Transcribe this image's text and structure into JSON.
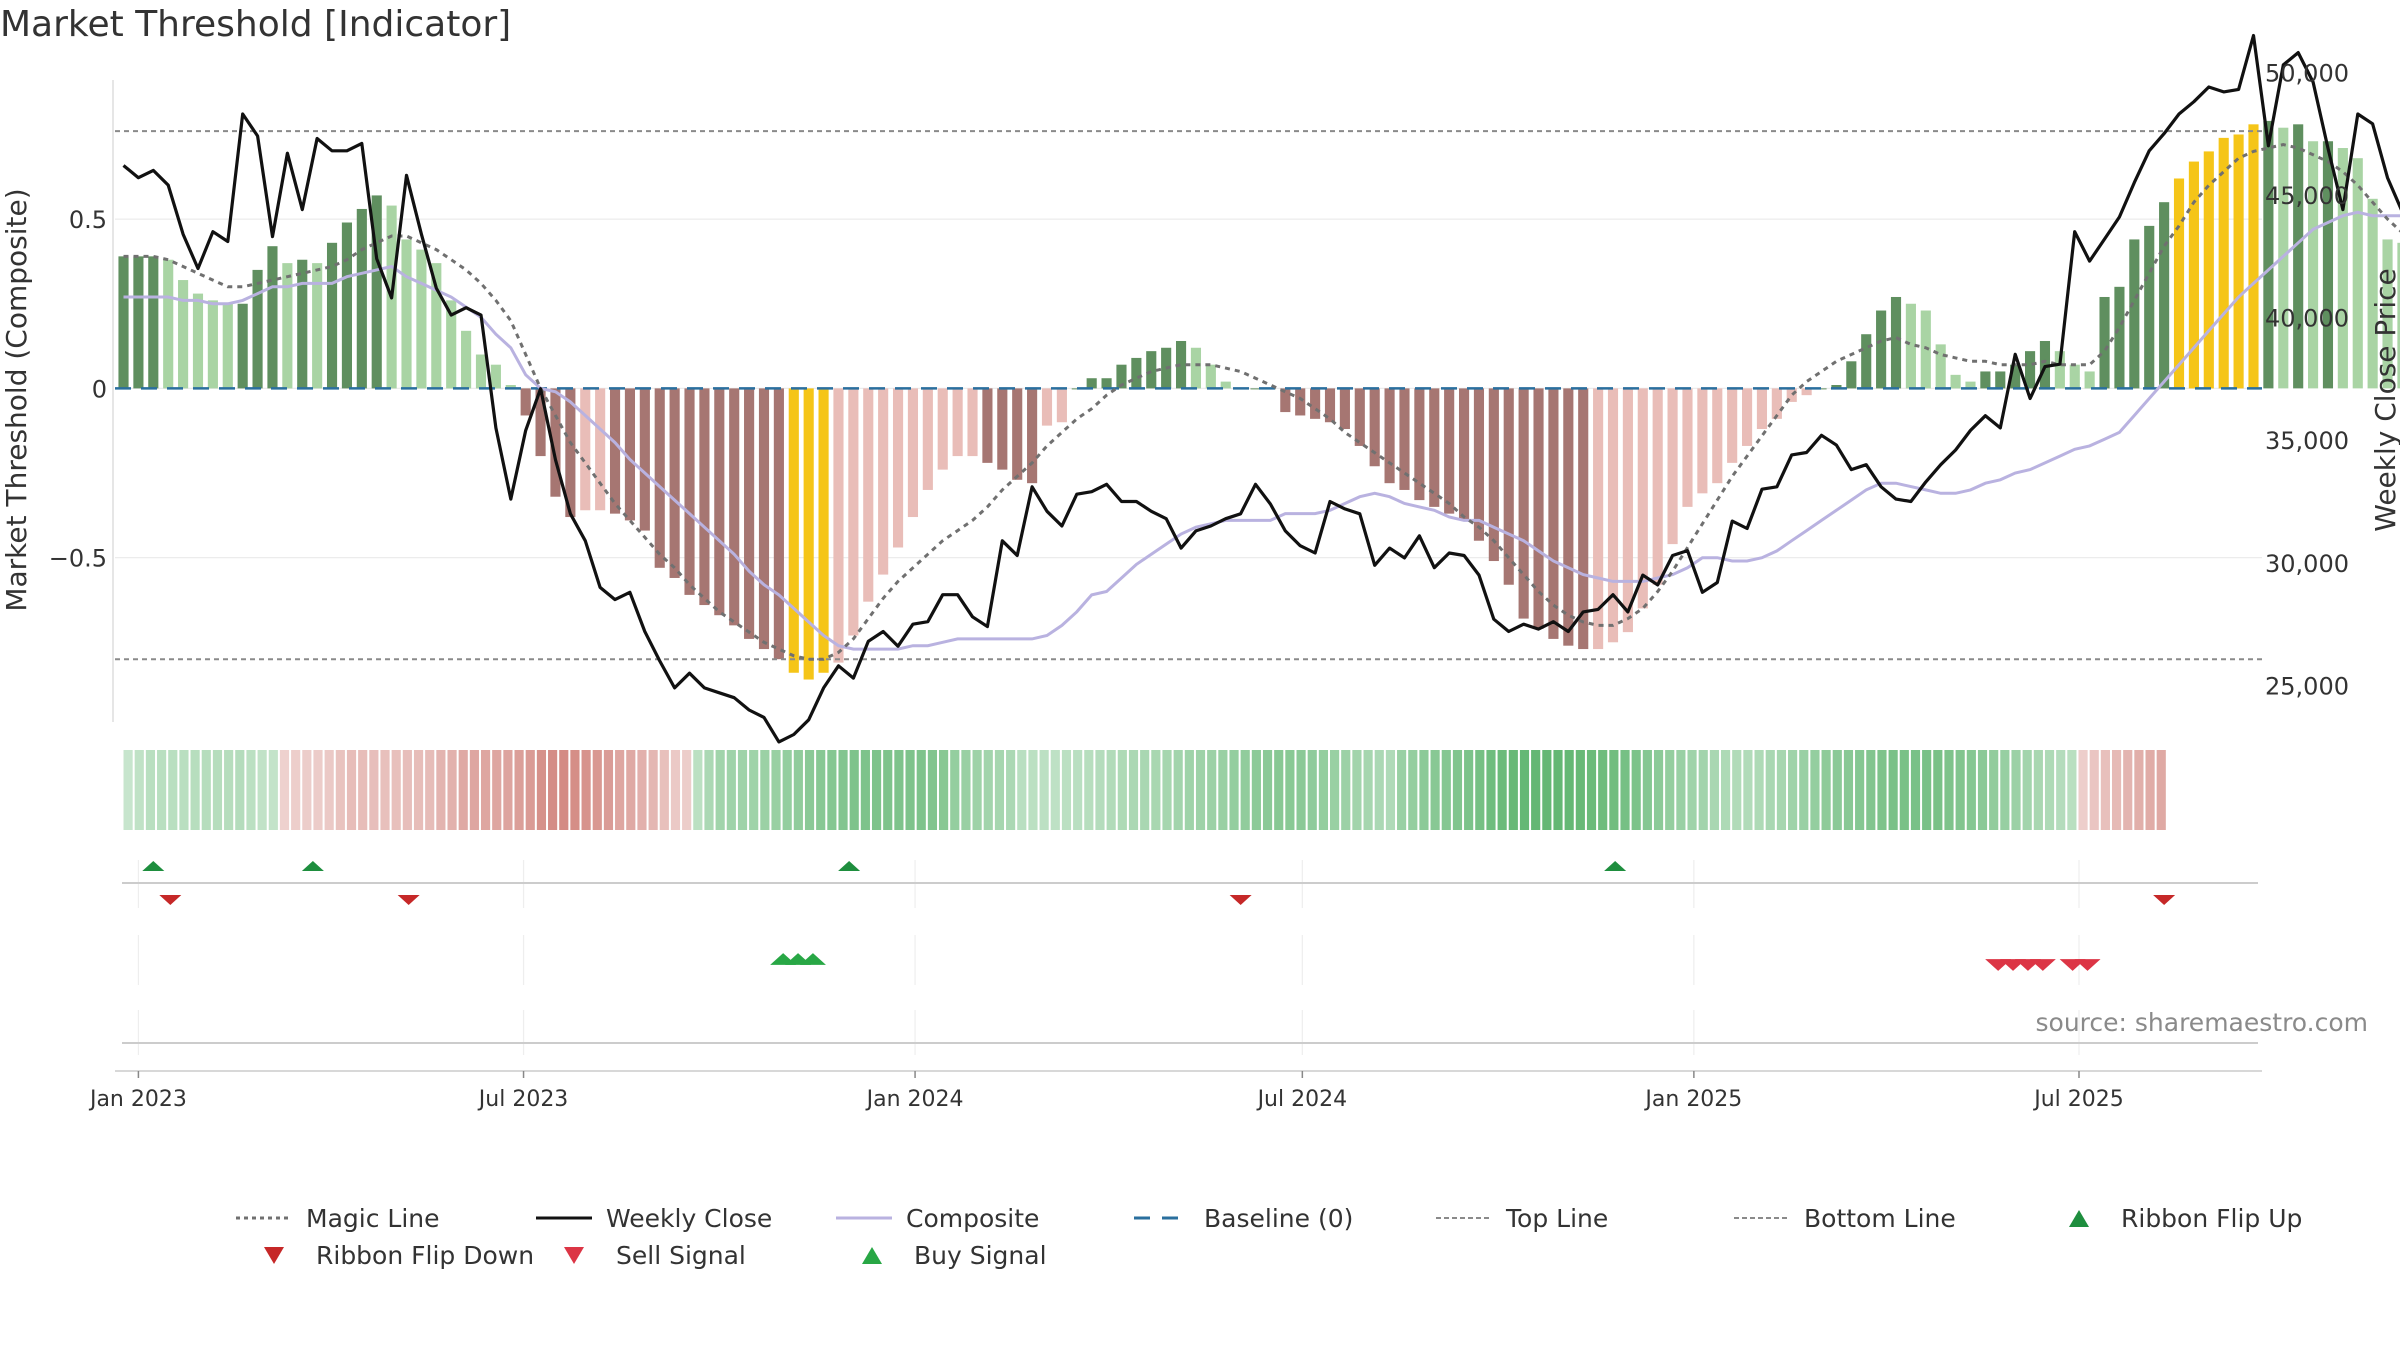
{
  "title": "Market Threshold [Indicator]",
  "source": "source: sharemaestro.com",
  "colors": {
    "magic": "#707070",
    "close": "#111111",
    "composite": "#b9b2e0",
    "baseline": "#2a6f9e",
    "top": "#8a8a8a",
    "bottom": "#8a8a8a",
    "flip_up": "#1e8e3e",
    "flip_down": "#c62828",
    "sell": "#dc3545",
    "buy": "#28a745",
    "gold": "#f5c518",
    "pos_dark": "#5f8f5f",
    "pos_light": "#a9d4a4",
    "neg_dark": "#a67672",
    "neg_light": "#e9bdb8"
  },
  "legend": [
    {
      "key": "magic",
      "label": "Magic Line",
      "sym": "dotted"
    },
    {
      "key": "close",
      "label": "Weekly Close",
      "sym": "solid"
    },
    {
      "key": "composite",
      "label": "Composite",
      "sym": "solid"
    },
    {
      "key": "baseline",
      "label": "Baseline (0)",
      "sym": "dashed"
    },
    {
      "key": "top",
      "label": "Top Line",
      "sym": "fine-dash"
    },
    {
      "key": "bottom",
      "label": "Bottom Line",
      "sym": "fine-dash"
    },
    {
      "key": "flip_up",
      "label": "Ribbon Flip Up",
      "sym": "tri-up"
    },
    {
      "key": "flip_down",
      "label": "Ribbon Flip Down",
      "sym": "tri-down"
    },
    {
      "key": "sell",
      "label": "Sell Signal",
      "sym": "tri-down"
    },
    {
      "key": "buy",
      "label": "Buy Signal",
      "sym": "tri-up"
    }
  ],
  "chart_data": {
    "type": "bar",
    "title": "Market Threshold [Indicator]",
    "ylabel": "Market Threshold (Composite)",
    "y2label": "Weekly Close Price",
    "ylim": [
      -0.95,
      0.97
    ],
    "y2lim": [
      24000,
      50500
    ],
    "yticks": [
      {
        "v": 0.5,
        "label": "0.5"
      },
      {
        "v": 0,
        "label": "0"
      },
      {
        "v": -0.5,
        "label": "−0.5"
      }
    ],
    "y2ticks": [
      {
        "v": 50000,
        "label": "50,000"
      },
      {
        "v": 45000,
        "label": "45,000"
      },
      {
        "v": 40000,
        "label": "40,000"
      },
      {
        "v": 35000,
        "label": "35,000"
      },
      {
        "v": 30000,
        "label": "30,000"
      },
      {
        "v": 25000,
        "label": "25,000"
      }
    ],
    "top_line": 0.76,
    "bottom_line": -0.8,
    "xlim": [
      "2022-12-21",
      "2025-09-25"
    ],
    "xticks": [
      {
        "date": "2023-01-01",
        "label": "Jan 2023"
      },
      {
        "date": "2023-07-01",
        "label": "Jul 2023"
      },
      {
        "date": "2024-01-01",
        "label": "Jan 2024"
      },
      {
        "date": "2024-07-01",
        "label": "Jul 2024"
      },
      {
        "date": "2025-01-01",
        "label": "Jan 2025"
      },
      {
        "date": "2025-07-01",
        "label": "Jul 2025"
      }
    ],
    "start_date": "2022-12-25",
    "week_step_days": 7,
    "composite_bars": [
      0.39,
      0.39,
      0.39,
      0.38,
      0.32,
      0.28,
      0.26,
      0.25,
      0.25,
      0.35,
      0.42,
      0.37,
      0.38,
      0.37,
      0.43,
      0.49,
      0.53,
      0.57,
      0.54,
      0.44,
      0.41,
      0.37,
      0.26,
      0.17,
      0.1,
      0.07,
      0.01,
      -0.08,
      -0.2,
      -0.32,
      -0.38,
      -0.36,
      -0.36,
      -0.37,
      -0.39,
      -0.42,
      -0.53,
      -0.56,
      -0.61,
      -0.64,
      -0.67,
      -0.7,
      -0.74,
      -0.77,
      -0.8,
      -0.84,
      -0.86,
      -0.84,
      -0.81,
      -0.73,
      -0.63,
      -0.55,
      -0.47,
      -0.38,
      -0.3,
      -0.24,
      -0.2,
      -0.2,
      -0.22,
      -0.24,
      -0.27,
      -0.28,
      -0.11,
      -0.1,
      0.0,
      0.03,
      0.03,
      0.07,
      0.09,
      0.11,
      0.12,
      0.14,
      0.12,
      0.07,
      0.02,
      0.0,
      0.0,
      0.0,
      -0.07,
      -0.08,
      -0.09,
      -0.1,
      -0.12,
      -0.17,
      -0.23,
      -0.28,
      -0.3,
      -0.33,
      -0.35,
      -0.37,
      -0.39,
      -0.45,
      -0.51,
      -0.58,
      -0.68,
      -0.71,
      -0.74,
      -0.76,
      -0.77,
      -0.77,
      -0.75,
      -0.72,
      -0.65,
      -0.58,
      -0.46,
      -0.35,
      -0.31,
      -0.28,
      -0.22,
      -0.17,
      -0.12,
      -0.09,
      -0.04,
      -0.02,
      0.0,
      0.01,
      0.08,
      0.16,
      0.23,
      0.27,
      0.25,
      0.23,
      0.13,
      0.04,
      0.02,
      0.05,
      0.05,
      0.07,
      0.11,
      0.14,
      0.11,
      0.07,
      0.05,
      0.27,
      0.3,
      0.44,
      0.48,
      0.55,
      0.62,
      0.67,
      0.7,
      0.74,
      0.75,
      0.78,
      0.79,
      0.77,
      0.78,
      0.73,
      0.73,
      0.71,
      0.68,
      0.56,
      0.44,
      0.43,
      0.35,
      0.27,
      0.2,
      0.18,
      0.24,
      0.26
    ],
    "gold_bar_indices": [
      45,
      46,
      47,
      138,
      139,
      140,
      141,
      142,
      143
    ],
    "weekly_close": [
      46200,
      45700,
      46000,
      45400,
      43400,
      42000,
      43500,
      43100,
      48300,
      47400,
      43300,
      46700,
      44400,
      47300,
      46800,
      46800,
      47100,
      42400,
      40800,
      45800,
      43400,
      41200,
      40100,
      40400,
      40100,
      35500,
      32600,
      35400,
      37100,
      34200,
      32000,
      30900,
      29000,
      28500,
      28800,
      27200,
      26000,
      24900,
      25500,
      24900,
      24700,
      24500,
      24000,
      23700,
      22700,
      23000,
      23600,
      24900,
      25800,
      25300,
      26800,
      27200,
      26600,
      27500,
      27600,
      28700,
      28700,
      27800,
      27400,
      30900,
      30300,
      33100,
      32100,
      31500,
      32800,
      32900,
      33200,
      32500,
      32500,
      32100,
      31800,
      30600,
      31300,
      31500,
      31800,
      32000,
      33200,
      32400,
      31300,
      30700,
      30400,
      32500,
      32200,
      32000,
      29900,
      30600,
      30200,
      31100,
      29800,
      30400,
      30300,
      29500,
      27700,
      27200,
      27500,
      27300,
      27600,
      27200,
      28000,
      28100,
      28700,
      28000,
      29500,
      29100,
      30300,
      30500,
      28800,
      29200,
      31700,
      31400,
      33000,
      33100,
      34400,
      34500,
      35200,
      34800,
      33800,
      34000,
      33100,
      32600,
      32500,
      33300,
      34000,
      34600,
      35400,
      36000,
      35500,
      38500,
      36700,
      38000,
      38100,
      43500,
      42300,
      43200,
      44100,
      45500,
      46800,
      47500,
      48300,
      48800,
      49400,
      49200,
      49300,
      51500,
      47000,
      50300,
      50800,
      49600,
      46900,
      44400,
      48300,
      47900,
      45700,
      44300,
      43300,
      46200,
      51500,
      49400
    ],
    "magic_line": [
      0.39,
      0.39,
      0.39,
      0.38,
      0.36,
      0.34,
      0.32,
      0.3,
      0.3,
      0.31,
      0.32,
      0.33,
      0.34,
      0.35,
      0.36,
      0.38,
      0.41,
      0.43,
      0.45,
      0.45,
      0.43,
      0.41,
      0.38,
      0.35,
      0.31,
      0.26,
      0.2,
      0.1,
      0.0,
      -0.08,
      -0.16,
      -0.22,
      -0.28,
      -0.34,
      -0.39,
      -0.44,
      -0.49,
      -0.53,
      -0.58,
      -0.62,
      -0.66,
      -0.69,
      -0.72,
      -0.75,
      -0.77,
      -0.79,
      -0.8,
      -0.8,
      -0.78,
      -0.74,
      -0.68,
      -0.62,
      -0.57,
      -0.53,
      -0.49,
      -0.45,
      -0.42,
      -0.39,
      -0.35,
      -0.3,
      -0.26,
      -0.22,
      -0.17,
      -0.13,
      -0.09,
      -0.06,
      -0.02,
      0.01,
      0.03,
      0.05,
      0.06,
      0.07,
      0.07,
      0.07,
      0.06,
      0.05,
      0.03,
      0.01,
      -0.01,
      -0.03,
      -0.06,
      -0.09,
      -0.13,
      -0.16,
      -0.19,
      -0.22,
      -0.25,
      -0.28,
      -0.31,
      -0.34,
      -0.38,
      -0.41,
      -0.45,
      -0.5,
      -0.55,
      -0.6,
      -0.64,
      -0.67,
      -0.69,
      -0.7,
      -0.7,
      -0.68,
      -0.65,
      -0.6,
      -0.54,
      -0.47,
      -0.4,
      -0.33,
      -0.26,
      -0.2,
      -0.14,
      -0.08,
      -0.02,
      0.02,
      0.05,
      0.08,
      0.1,
      0.12,
      0.14,
      0.15,
      0.13,
      0.12,
      0.1,
      0.09,
      0.08,
      0.08,
      0.07,
      0.07,
      0.07,
      0.08,
      0.07,
      0.07,
      0.07,
      0.11,
      0.18,
      0.26,
      0.34,
      0.42,
      0.48,
      0.55,
      0.6,
      0.64,
      0.68,
      0.7,
      0.71,
      0.72,
      0.71,
      0.69,
      0.67,
      0.64,
      0.6,
      0.55,
      0.5,
      0.46,
      0.42,
      0.38,
      0.35,
      0.33,
      0.32,
      0.31
    ],
    "composite_line": [
      0.27,
      0.27,
      0.27,
      0.27,
      0.26,
      0.26,
      0.25,
      0.25,
      0.26,
      0.28,
      0.3,
      0.3,
      0.31,
      0.31,
      0.31,
      0.33,
      0.34,
      0.35,
      0.36,
      0.33,
      0.31,
      0.29,
      0.27,
      0.24,
      0.21,
      0.16,
      0.12,
      0.04,
      0.0,
      -0.01,
      -0.04,
      -0.08,
      -0.12,
      -0.16,
      -0.21,
      -0.25,
      -0.29,
      -0.33,
      -0.37,
      -0.41,
      -0.45,
      -0.49,
      -0.54,
      -0.58,
      -0.61,
      -0.65,
      -0.69,
      -0.73,
      -0.76,
      -0.77,
      -0.77,
      -0.77,
      -0.77,
      -0.76,
      -0.76,
      -0.75,
      -0.74,
      -0.74,
      -0.74,
      -0.74,
      -0.74,
      -0.74,
      -0.73,
      -0.7,
      -0.66,
      -0.61,
      -0.6,
      -0.56,
      -0.52,
      -0.49,
      -0.46,
      -0.43,
      -0.41,
      -0.4,
      -0.39,
      -0.39,
      -0.39,
      -0.39,
      -0.37,
      -0.37,
      -0.37,
      -0.36,
      -0.34,
      -0.32,
      -0.31,
      -0.32,
      -0.34,
      -0.35,
      -0.36,
      -0.38,
      -0.39,
      -0.39,
      -0.41,
      -0.43,
      -0.45,
      -0.48,
      -0.51,
      -0.53,
      -0.55,
      -0.56,
      -0.57,
      -0.57,
      -0.57,
      -0.56,
      -0.55,
      -0.53,
      -0.5,
      -0.5,
      -0.51,
      -0.51,
      -0.5,
      -0.48,
      -0.45,
      -0.42,
      -0.39,
      -0.36,
      -0.33,
      -0.3,
      -0.28,
      -0.28,
      -0.29,
      -0.3,
      -0.31,
      -0.31,
      -0.3,
      -0.28,
      -0.27,
      -0.25,
      -0.24,
      -0.22,
      -0.2,
      -0.18,
      -0.17,
      -0.15,
      -0.13,
      -0.08,
      -0.03,
      0.02,
      0.07,
      0.12,
      0.17,
      0.22,
      0.27,
      0.31,
      0.35,
      0.39,
      0.43,
      0.47,
      0.49,
      0.51,
      0.52,
      0.51,
      0.51,
      0.51,
      0.51,
      0.51,
      0.5,
      0.49,
      0.48,
      0.47,
      0.48,
      0.48,
      0.49
    ],
    "ribbon": [
      0.05,
      0.1,
      0.15,
      0.15,
      0.15,
      0.15,
      0.16,
      0.17,
      0.17,
      0.17,
      0.18,
      0.13,
      0.09,
      0.08,
      -0.1,
      -0.12,
      -0.13,
      -0.14,
      -0.16,
      -0.2,
      -0.24,
      -0.24,
      -0.23,
      -0.22,
      -0.22,
      -0.23,
      -0.24,
      -0.25,
      -0.3,
      -0.32,
      -0.38,
      -0.4,
      -0.4,
      -0.4,
      -0.41,
      -0.45,
      -0.48,
      -0.55,
      -0.58,
      -0.59,
      -0.57,
      -0.53,
      -0.5,
      -0.47,
      -0.4,
      -0.38,
      -0.33,
      -0.28,
      -0.22,
      -0.16,
      -0.13,
      0.13,
      0.24,
      0.31,
      0.32,
      0.32,
      0.32,
      0.35,
      0.37,
      0.4,
      0.42,
      0.46,
      0.48,
      0.5,
      0.52,
      0.55,
      0.55,
      0.55,
      0.55,
      0.55,
      0.55,
      0.55,
      0.52,
      0.48,
      0.4,
      0.37,
      0.33,
      0.3,
      0.28,
      0.24,
      0.14,
      0.13,
      0.12,
      0.11,
      0.13,
      0.14,
      0.16,
      0.18,
      0.2,
      0.22,
      0.24,
      0.25,
      0.26,
      0.28,
      0.3,
      0.32,
      0.33,
      0.34,
      0.37,
      0.4,
      0.42,
      0.45,
      0.46,
      0.48,
      0.47,
      0.46,
      0.43,
      0.4,
      0.37,
      0.34,
      0.3,
      0.27,
      0.24,
      0.21,
      0.36,
      0.4,
      0.45,
      0.48,
      0.5,
      0.53,
      0.56,
      0.6,
      0.65,
      0.68,
      0.7,
      0.72,
      0.73,
      0.73,
      0.73,
      0.72,
      0.7,
      0.68,
      0.66,
      0.64,
      0.6,
      0.56,
      0.5,
      0.45,
      0.4,
      0.36,
      0.32,
      0.3,
      0.25,
      0.22,
      0.2,
      0.2,
      0.22,
      0.25,
      0.28,
      0.32,
      0.36,
      0.4,
      0.44,
      0.46,
      0.48,
      0.5,
      0.52,
      0.55,
      0.58,
      0.58,
      0.58,
      0.58,
      0.58,
      0.55,
      0.52,
      0.5,
      0.46,
      0.42,
      0.38,
      0.34,
      0.3,
      0.26,
      0.22,
      0.18,
      0.15,
      -0.12,
      -0.18,
      -0.22,
      -0.26,
      -0.3,
      -0.34,
      -0.36,
      -0.38
    ],
    "ribbon_start_date": "2022-12-25",
    "ribbon_step_days": 5.25,
    "ribbon_flip_up": [
      "2023-01-08",
      "2023-03-24",
      "2023-12-01",
      "2024-11-25"
    ],
    "ribbon_flip_down": [
      "2023-01-16",
      "2023-05-08",
      "2024-06-02",
      "2025-08-10"
    ],
    "buy_signals": [
      "2023-10-31",
      "2023-11-07",
      "2023-11-14"
    ],
    "sell_signals": [
      "2025-05-24",
      "2025-05-31",
      "2025-06-07",
      "2025-06-14",
      "2025-06-28",
      "2025-07-05"
    ]
  }
}
